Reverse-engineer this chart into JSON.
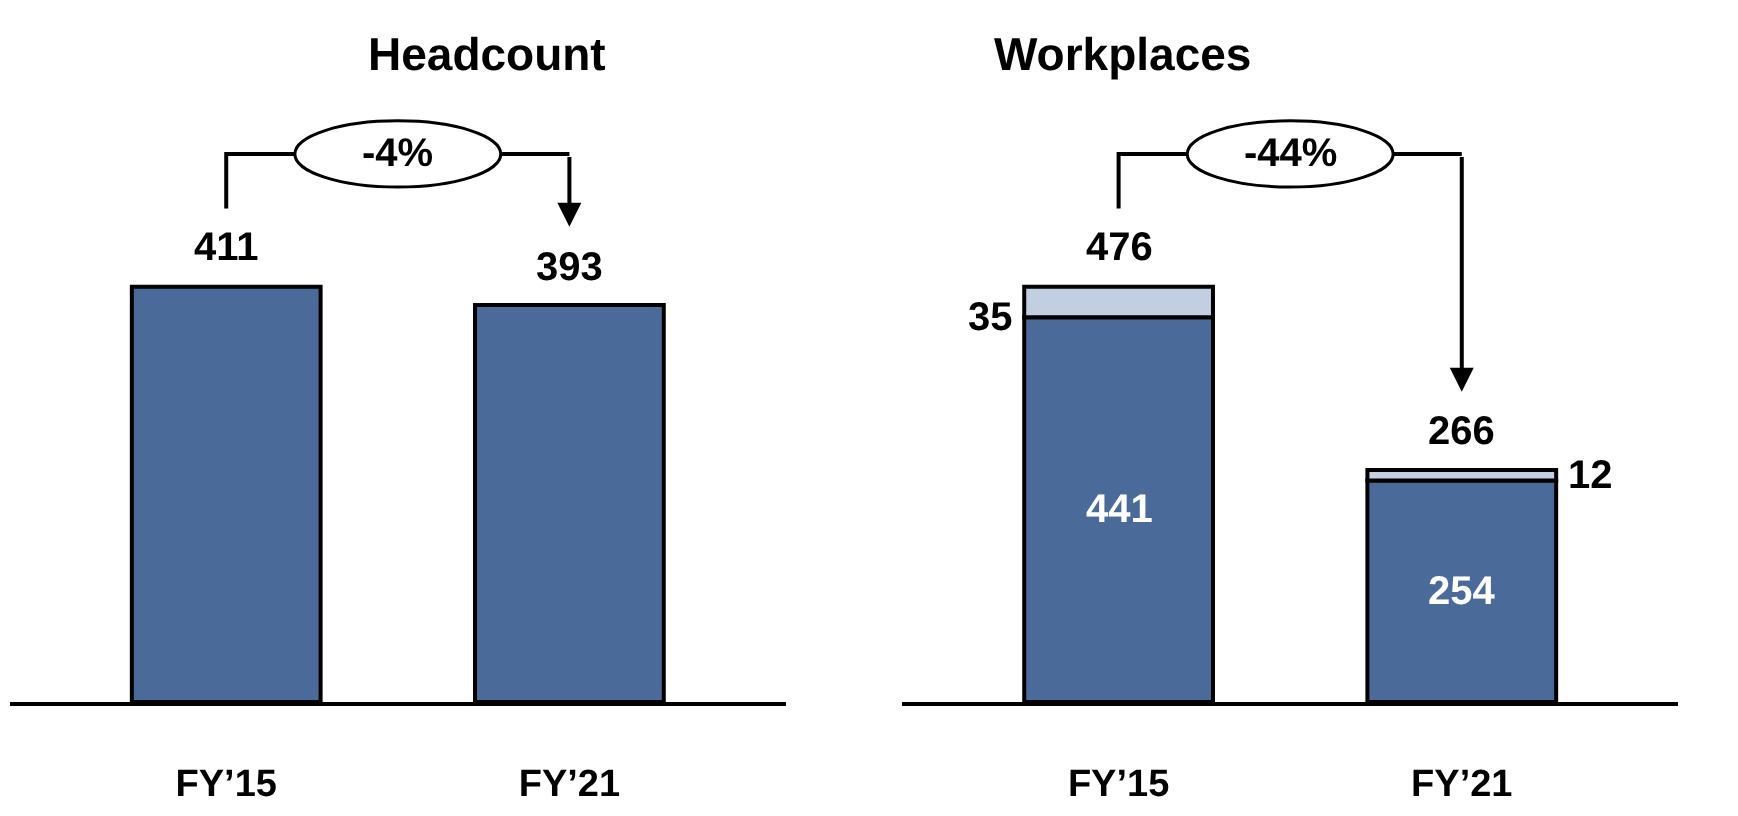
{
  "chart_data": [
    {
      "type": "bar",
      "title": "Headcount",
      "categories": [
        "FY’15",
        "FY’21"
      ],
      "values": [
        411,
        393
      ],
      "color": "#4a6a99",
      "data_labels": true,
      "annotations": [
        "-4%"
      ]
    },
    {
      "type": "bar",
      "title": "Workplaces",
      "categories": [
        "FY’15",
        "FY’21"
      ],
      "stacked": true,
      "data_labels": true,
      "series": [
        {
          "color": "#4a6a99",
          "values": [
            441,
            254
          ]
        },
        {
          "color": "#c2cfe2",
          "values": [
            35,
            12
          ]
        }
      ],
      "totals": [
        "476",
        "266"
      ],
      "annotations": [
        "-44%"
      ]
    }
  ]
}
